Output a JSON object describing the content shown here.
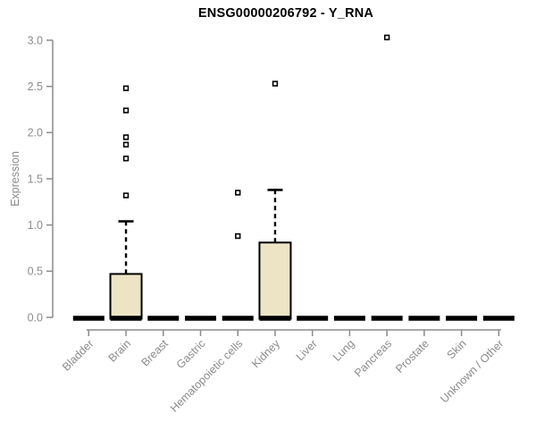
{
  "chart_data": {
    "type": "boxplot",
    "title": "ENSG00000206792 - Y_RNA",
    "ylabel": "Expression",
    "xlabel": "",
    "ylim": [
      0.0,
      3.0
    ],
    "ytick_labels": [
      "0.0",
      "0.5",
      "1.0",
      "1.5",
      "2.0",
      "2.5",
      "3.0"
    ],
    "grid": false,
    "legend": "none",
    "categories": [
      "Bladder",
      "Brain",
      "Breast",
      "Gastric",
      "Hematopoietic cells",
      "Kidney",
      "Liver",
      "Lung",
      "Pancreas",
      "Prostate",
      "Skin",
      "Unknown / Other"
    ],
    "series": [
      {
        "category": "Bladder",
        "q1": 0,
        "median": 0,
        "q3": 0,
        "whisker_low": 0,
        "whisker_high": 0,
        "outliers": []
      },
      {
        "category": "Brain",
        "q1": 0,
        "median": 0,
        "q3": 0.47,
        "whisker_low": 0,
        "whisker_high": 1.04,
        "outliers": [
          1.32,
          1.72,
          1.87,
          1.95,
          2.24,
          2.48
        ]
      },
      {
        "category": "Breast",
        "q1": 0,
        "median": 0,
        "q3": 0,
        "whisker_low": 0,
        "whisker_high": 0,
        "outliers": []
      },
      {
        "category": "Gastric",
        "q1": 0,
        "median": 0,
        "q3": 0,
        "whisker_low": 0,
        "whisker_high": 0,
        "outliers": []
      },
      {
        "category": "Hematopoietic cells",
        "q1": 0,
        "median": 0,
        "q3": 0,
        "whisker_low": 0,
        "whisker_high": 0,
        "outliers": [
          0.88,
          1.35
        ]
      },
      {
        "category": "Kidney",
        "q1": 0,
        "median": 0,
        "q3": 0.81,
        "whisker_low": 0,
        "whisker_high": 1.38,
        "outliers": [
          2.53
        ]
      },
      {
        "category": "Liver",
        "q1": 0,
        "median": 0,
        "q3": 0,
        "whisker_low": 0,
        "whisker_high": 0,
        "outliers": []
      },
      {
        "category": "Lung",
        "q1": 0,
        "median": 0,
        "q3": 0,
        "whisker_low": 0,
        "whisker_high": 0,
        "outliers": []
      },
      {
        "category": "Pancreas",
        "q1": 0,
        "median": 0,
        "q3": 0,
        "whisker_low": 0,
        "whisker_high": 0,
        "outliers": [
          3.03
        ]
      },
      {
        "category": "Prostate",
        "q1": 0,
        "median": 0,
        "q3": 0,
        "whisker_low": 0,
        "whisker_high": 0,
        "outliers": []
      },
      {
        "category": "Skin",
        "q1": 0,
        "median": 0,
        "q3": 0,
        "whisker_low": 0,
        "whisker_high": 0,
        "outliers": []
      },
      {
        "category": "Unknown / Other",
        "q1": 0,
        "median": 0,
        "q3": 0,
        "whisker_low": 0,
        "whisker_high": 0,
        "outliers": []
      }
    ],
    "colors": {
      "box_fill": "#ece4c5",
      "box_border": "#000000",
      "median": "#000000",
      "whisker": "#000000",
      "outlier_fill": "#ffffff",
      "outlier_border": "#000000",
      "axis": "#8b8b8b",
      "tick_text": "#8b8b8b",
      "title_text": "#000000"
    }
  }
}
